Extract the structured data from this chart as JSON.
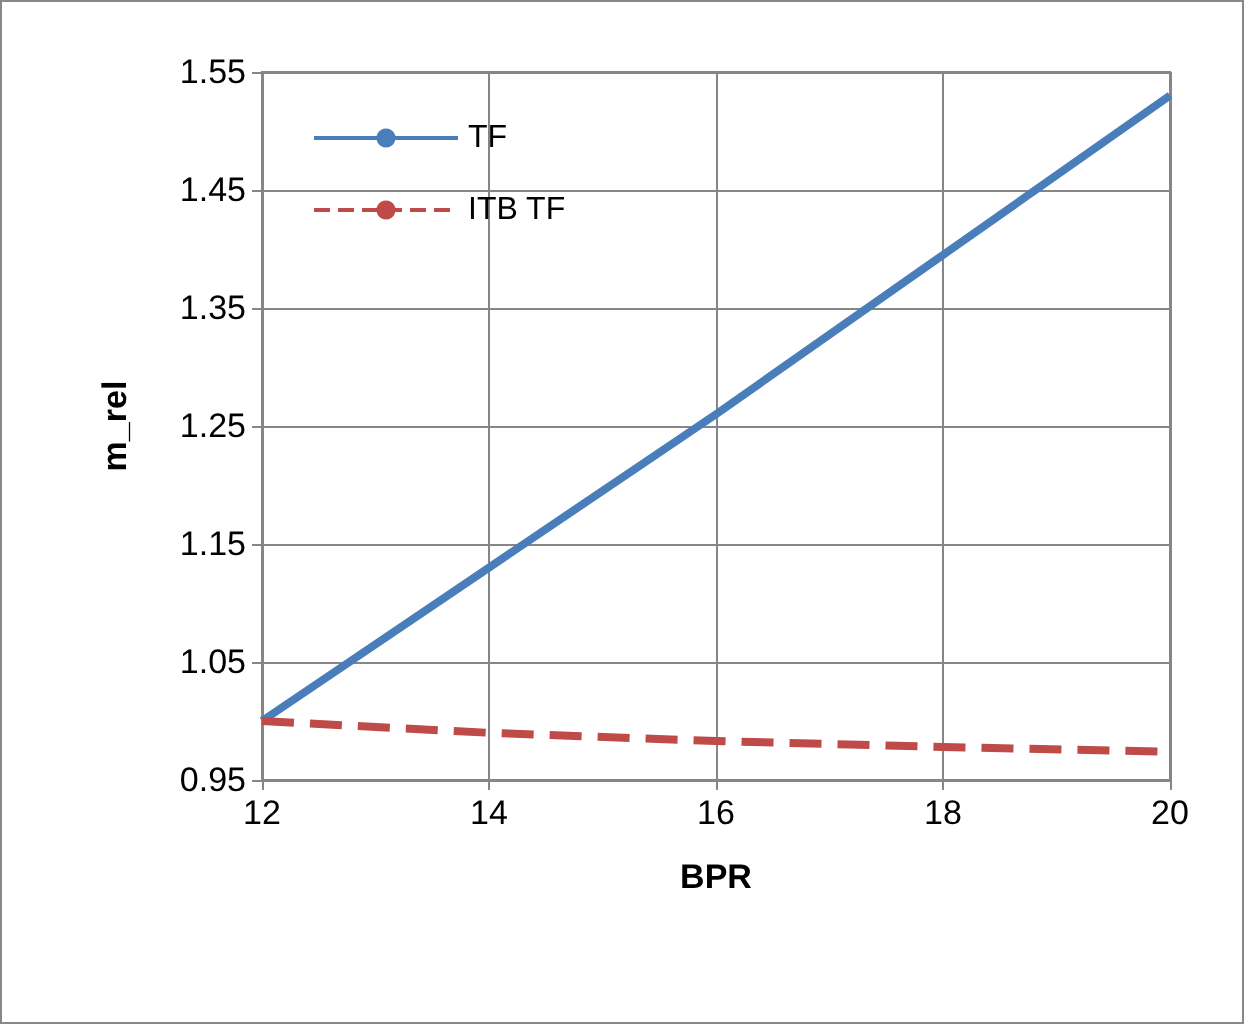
{
  "chart_data": {
    "type": "line",
    "xlabel": "BPR",
    "ylabel": "m_rel",
    "x": [
      12,
      14,
      16,
      18,
      20
    ],
    "series": [
      {
        "name": "TF",
        "color": "#4a7ebb",
        "values": [
          1.0,
          1.13,
          1.26,
          1.395,
          1.53
        ],
        "line_style": "solid"
      },
      {
        "name": "ITB TF",
        "color": "#be4b48",
        "values": [
          1.0,
          0.99,
          0.983,
          0.978,
          0.974
        ],
        "line_style": "dashed"
      }
    ],
    "xlim": [
      12,
      20
    ],
    "xticks": [
      12,
      14,
      16,
      18,
      20
    ],
    "ylim": [
      0.95,
      1.55
    ],
    "yticks": [
      0.95,
      1.05,
      1.15,
      1.25,
      1.35,
      1.45,
      1.55
    ],
    "grid": true,
    "legend": "top left",
    "marker": "none"
  }
}
